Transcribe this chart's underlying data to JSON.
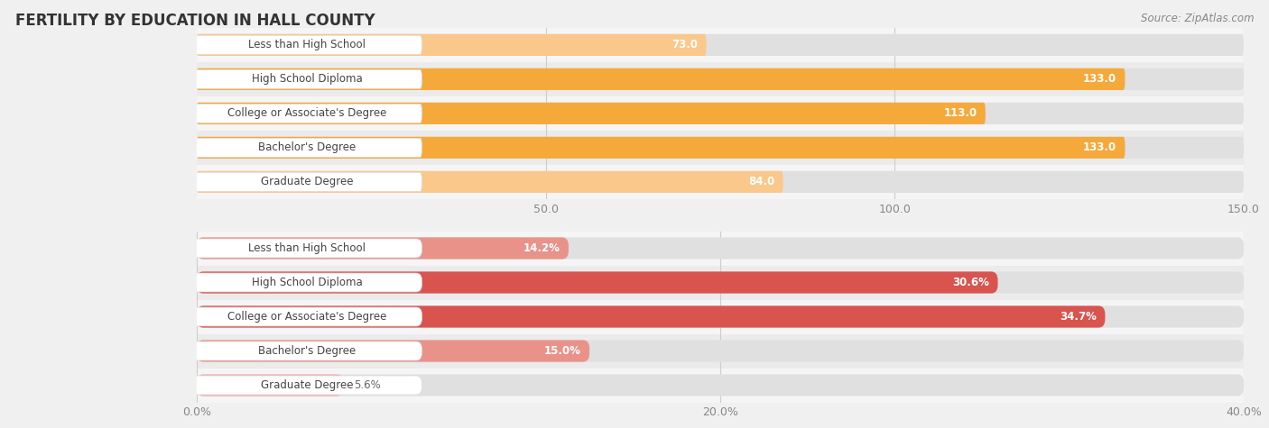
{
  "title": "FERTILITY BY EDUCATION IN HALL COUNTY",
  "source": "Source: ZipAtlas.com",
  "top_chart": {
    "categories": [
      "Less than High School",
      "High School Diploma",
      "College or Associate's Degree",
      "Bachelor's Degree",
      "Graduate Degree"
    ],
    "values": [
      73.0,
      133.0,
      113.0,
      133.0,
      84.0
    ],
    "bar_colors": [
      "#f9c88a",
      "#f5a93a",
      "#f5a93a",
      "#f5a93a",
      "#f9c88a"
    ],
    "label_colors": [
      "#c8873a",
      "#c8783a",
      "#c8783a",
      "#c8783a",
      "#c8873a"
    ],
    "value_labels": [
      "73.0",
      "133.0",
      "113.0",
      "133.0",
      "84.0"
    ],
    "xlim": [
      0,
      150
    ],
    "xticks": [
      50.0,
      100.0,
      150.0
    ],
    "xtick_labels": [
      "50.0",
      "100.0",
      "150.0"
    ]
  },
  "bottom_chart": {
    "categories": [
      "Less than High School",
      "High School Diploma",
      "College or Associate's Degree",
      "Bachelor's Degree",
      "Graduate Degree"
    ],
    "values": [
      14.2,
      30.6,
      34.7,
      15.0,
      5.6
    ],
    "bar_colors": [
      "#e8928a",
      "#d9534f",
      "#d9534f",
      "#e8928a",
      "#f2b3af"
    ],
    "label_colors": [
      "#c05050",
      "#c03030",
      "#c03030",
      "#c05050",
      "#c07070"
    ],
    "value_labels": [
      "14.2%",
      "30.6%",
      "34.7%",
      "15.0%",
      "5.6%"
    ],
    "xlim": [
      0,
      40
    ],
    "xticks": [
      0.0,
      20.0,
      40.0
    ],
    "xtick_labels": [
      "0.0%",
      "20.0%",
      "40.0%"
    ]
  },
  "bar_height": 0.62,
  "label_fontsize": 8.5,
  "tick_fontsize": 9,
  "title_fontsize": 12,
  "source_fontsize": 8.5,
  "bg_color": "#f0f0f0",
  "bar_bg_color": "#e0e0e0",
  "row_bg_even": "#ebebeb",
  "row_bg_odd": "#f5f5f5"
}
